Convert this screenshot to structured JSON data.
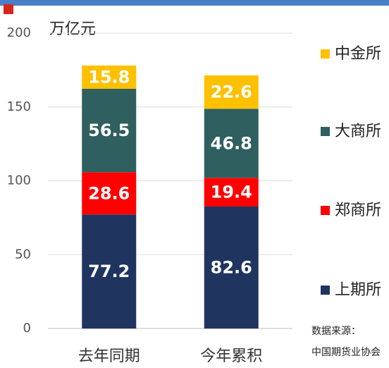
{
  "chart_data": {
    "type": "stacked_bar",
    "y_axis_label": "万亿元",
    "categories": [
      "去年同期",
      "今年累积"
    ],
    "series": [
      {
        "name": "上期所",
        "color": "#1f3560",
        "values": [
          77.2,
          82.6
        ]
      },
      {
        "name": "郑商所",
        "color": "#ff0000",
        "values": [
          28.6,
          19.4
        ]
      },
      {
        "name": "大商所",
        "color": "#2f5f5f",
        "values": [
          56.5,
          46.8
        ]
      },
      {
        "name": "中金所",
        "color": "#ffc000",
        "values": [
          15.8,
          22.6
        ]
      }
    ],
    "ylim": [
      0,
      200
    ],
    "yticks": [
      0,
      50,
      100,
      150,
      200
    ],
    "grid": true,
    "legend": "right",
    "annotations": [
      "数据来源：",
      "中国期货业协会"
    ]
  }
}
